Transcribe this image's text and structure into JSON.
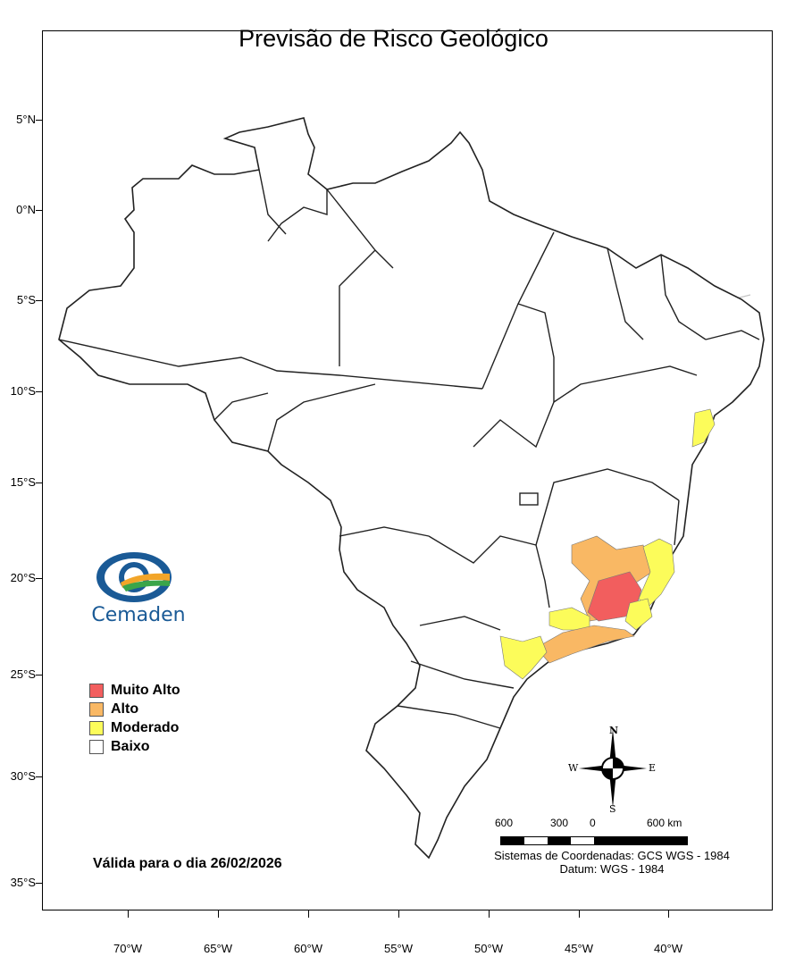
{
  "title": "Previsão de Risco Geológico",
  "lat_labels": [
    "5°N",
    "0°N",
    "5°S",
    "10°S",
    "15°S",
    "20°S",
    "25°S",
    "30°S",
    "35°S"
  ],
  "lon_labels": [
    "70°W",
    "65°W",
    "60°W",
    "55°W",
    "50°W",
    "45°W",
    "40°W"
  ],
  "logo": {
    "text": "Cemaden"
  },
  "legend": [
    {
      "label": "Muito Alto",
      "color": "#f25e5e"
    },
    {
      "label": "Alto",
      "color": "#f9b864"
    },
    {
      "label": "Moderado",
      "color": "#fcfc5a"
    },
    {
      "label": "Baixo",
      "color": "#ffffff"
    }
  ],
  "validity": "Válida para o dia 26/02/2026",
  "scale": {
    "labels": [
      "600",
      "300",
      "0",
      "600 km"
    ]
  },
  "coordinate_system": "Sistemas de Coordenadas: GCS WGS - 1984",
  "datum": "Datum: WGS - 1984",
  "compass": {
    "n": "N",
    "s": "S",
    "e": "E",
    "w": "W"
  },
  "colors": {
    "state_border": "#222222",
    "municipal_border": "#c4c4c4"
  }
}
